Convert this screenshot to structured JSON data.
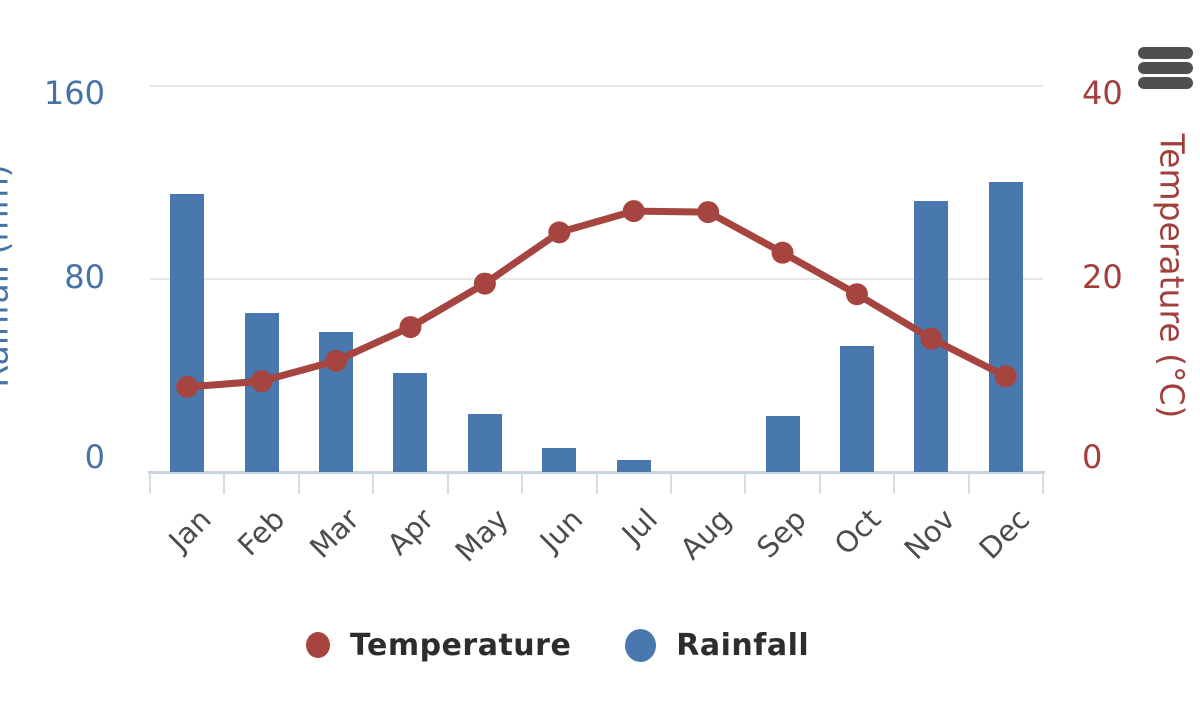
{
  "export_menu": {
    "icon": "hamburger-menu-icon"
  },
  "legend": {
    "items": [
      {
        "label": "Temperature",
        "color": "#a64440",
        "marker": "small-circle"
      },
      {
        "label": "Rainfall",
        "color": "#4878ad",
        "marker": "large-circle"
      }
    ],
    "position": "bottom"
  },
  "chart_data": {
    "type": "combo",
    "categories": [
      "Jan",
      "Feb",
      "Mar",
      "Apr",
      "May",
      "Jun",
      "Jul",
      "Aug",
      "Sep",
      "Oct",
      "Nov",
      "Dec"
    ],
    "series": [
      {
        "name": "Temperature",
        "type": "line",
        "axis": "right",
        "color": "#a64440",
        "values": [
          8.8,
          9.4,
          11.5,
          15.0,
          19.5,
          24.8,
          27.0,
          26.9,
          22.7,
          18.4,
          13.8,
          9.9
        ]
      },
      {
        "name": "Rainfall",
        "type": "bar",
        "axis": "left",
        "color": "#4878ad",
        "values": [
          115,
          66,
          58,
          41,
          24,
          10,
          5,
          0,
          23,
          52,
          112,
          120
        ]
      }
    ],
    "left_axis": {
      "title": "Rainfall (mm)",
      "min": 0,
      "max": 160,
      "ticks": [
        0,
        80,
        160
      ],
      "color": "#4572a7"
    },
    "right_axis": {
      "title": "Temperature (°C)",
      "min": 0,
      "max": 40,
      "ticks": [
        0,
        20,
        40
      ],
      "color": "#a23e3c"
    },
    "grid": true,
    "x_label_rotation": -45,
    "legend_position": "bottom"
  }
}
